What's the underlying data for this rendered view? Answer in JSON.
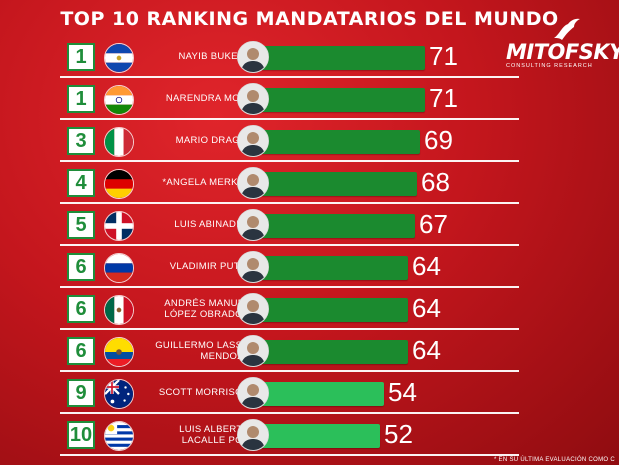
{
  "chart_data": {
    "type": "bar",
    "title": "TOP 10 RANKING MANDATARIOS DEL MUNDO",
    "orientation": "horizontal",
    "xlim": [
      0,
      100
    ],
    "grid": false,
    "rows": [
      {
        "rank": "1",
        "name": [
          "NAYIB BUKELE"
        ],
        "value": 71,
        "flag": "el-salvador-flag",
        "bar_color": "#1b8a2f"
      },
      {
        "rank": "1",
        "name": [
          "NARENDRA MODI"
        ],
        "value": 71,
        "flag": "india-flag",
        "bar_color": "#1b8a2f"
      },
      {
        "rank": "3",
        "name": [
          "MARIO DRAGHI"
        ],
        "value": 69,
        "flag": "italy-flag",
        "bar_color": "#1b8a2f"
      },
      {
        "rank": "4",
        "name": [
          "*ANGELA MERKEL"
        ],
        "value": 68,
        "flag": "germany-flag",
        "bar_color": "#1b8a2f"
      },
      {
        "rank": "5",
        "name": [
          "LUIS ABINADER"
        ],
        "value": 67,
        "flag": "dominican-republic-flag",
        "bar_color": "#1b8a2f"
      },
      {
        "rank": "6",
        "name": [
          "VLADIMIR PUTIN"
        ],
        "value": 64,
        "flag": "russia-flag",
        "bar_color": "#1b8a2f"
      },
      {
        "rank": "6",
        "name": [
          "ANDRÉS MANUEL",
          "LÓPEZ OBRADOR"
        ],
        "value": 64,
        "flag": "mexico-flag",
        "bar_color": "#1b8a2f"
      },
      {
        "rank": "6",
        "name": [
          "GUILLERMO LASSO",
          "MENDOZA"
        ],
        "value": 64,
        "flag": "ecuador-flag",
        "bar_color": "#1b8a2f"
      },
      {
        "rank": "9",
        "name": [
          "SCOTT MORRISON"
        ],
        "value": 54,
        "flag": "australia-flag",
        "bar_color": "#2bbf5a"
      },
      {
        "rank": "10",
        "name": [
          "LUIS ALBERTO",
          "LACALLE POU"
        ],
        "value": 52,
        "flag": "uruguay-flag",
        "bar_color": "#2bbf5a"
      }
    ]
  },
  "logo": {
    "name": "MITOFSKY",
    "subtitle": "CONSULTING RESEARCH"
  },
  "footnote": "* EN SU ÚLTIMA EVALUACIÓN COMO C"
}
